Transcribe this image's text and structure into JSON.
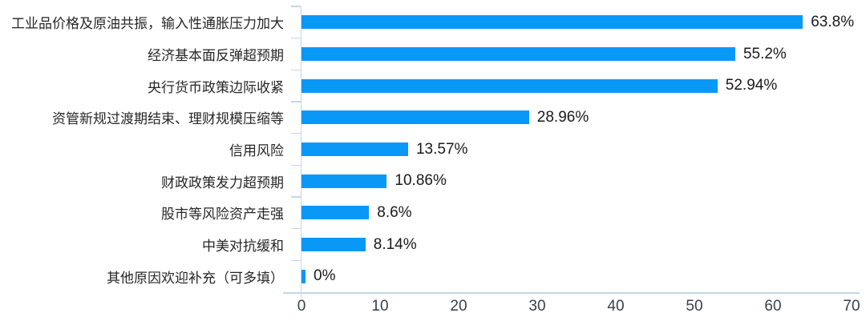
{
  "chart_data": {
    "type": "bar",
    "orientation": "horizontal",
    "title": "",
    "xlabel": "",
    "ylabel": "",
    "grid": false,
    "legend": "none",
    "xlim": [
      0,
      70
    ],
    "x_ticks": [
      0,
      10,
      20,
      30,
      40,
      50,
      60,
      70
    ],
    "categories": [
      "工业品价格及原油共振，输入性通胀压力加大",
      "经济基本面反弹超预期",
      "央行货币政策边际收紧",
      "资管新规过渡期结束、理财规模压缩等",
      "信用风险",
      "财政政策发力超预期",
      "股市等风险资产走强",
      "中美对抗缓和",
      "其他原因欢迎补充（可多填）"
    ],
    "values": [
      63.8,
      55.2,
      52.94,
      28.96,
      13.57,
      10.86,
      8.6,
      8.14,
      0
    ],
    "value_labels": [
      "63.8%",
      "55.2%",
      "52.94%",
      "28.96%",
      "13.57%",
      "10.86%",
      "8.6%",
      "8.14%",
      "0%"
    ],
    "bar_color": "#0a98f7",
    "axis_color": "#c6d5e8",
    "text_color": "#1a1a1a"
  }
}
